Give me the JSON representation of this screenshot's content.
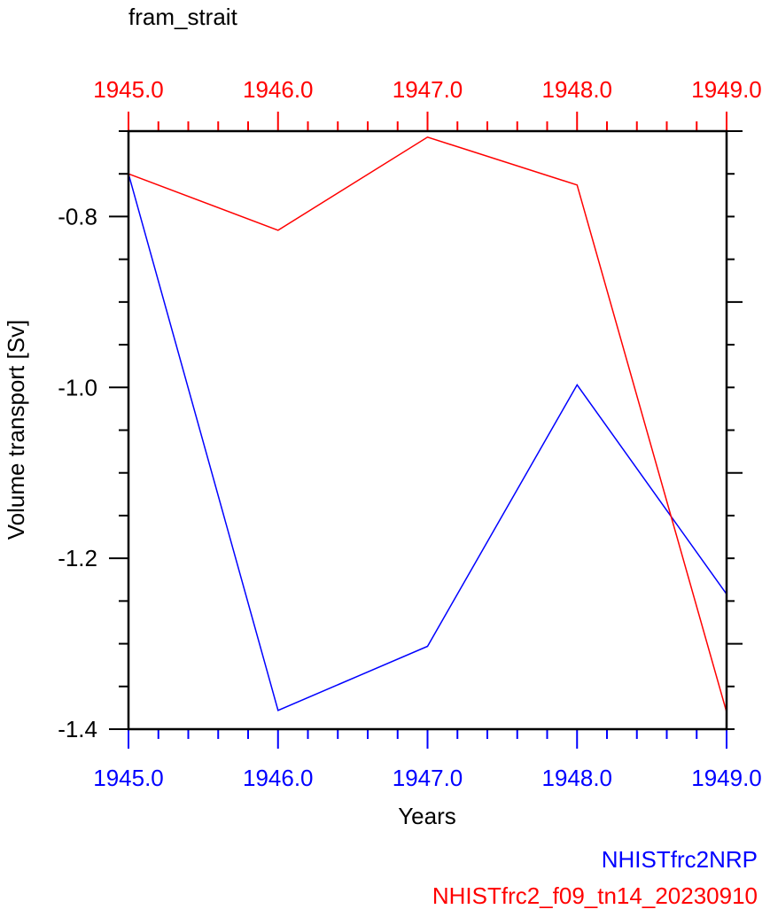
{
  "chart_data": {
    "type": "line",
    "title": "fram_strait",
    "xlabel": "Years",
    "ylabel": "Volume transport [Sv]",
    "x": [
      1945,
      1946,
      1947,
      1948,
      1949
    ],
    "xlim": [
      1945,
      1949
    ],
    "ylim": [
      -1.4,
      -0.7
    ],
    "xticks": [
      "1945.0",
      "1946.0",
      "1947.0",
      "1948.0",
      "1949.0"
    ],
    "yticks": [
      {
        "value": -0.8,
        "label": "-0.8"
      },
      {
        "value": -1.0,
        "label": "-1.0"
      },
      {
        "value": -1.2,
        "label": "-1.2"
      },
      {
        "value": -1.4,
        "label": "-1.4"
      }
    ],
    "series": [
      {
        "name": "NHISTfrc2NRP",
        "color": "#0000ff",
        "axis": "bottom",
        "values": [
          -0.75,
          -1.378,
          -1.303,
          -0.997,
          -1.242
        ]
      },
      {
        "name": "NHISTfrc2_f09_tn14_20230910",
        "color": "#ff0000",
        "axis": "top",
        "values": [
          -0.75,
          -0.816,
          -0.707,
          -0.763,
          -1.38
        ]
      }
    ],
    "grid": false,
    "legend_position": "bottom-right"
  }
}
